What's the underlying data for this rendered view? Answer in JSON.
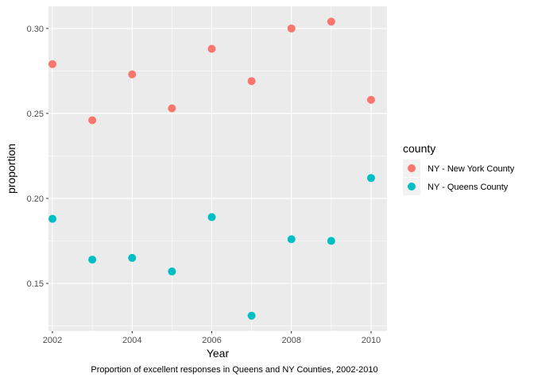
{
  "chart_data": {
    "type": "scatter",
    "title": "",
    "xlabel": "Year",
    "ylabel": "proportion",
    "caption": "Proportion of excellent responses in Queens and NY Counties, 2002-2010",
    "xlim": [
      2001.9,
      2010.4
    ],
    "ylim": [
      0.122,
      0.313
    ],
    "x_ticks": [
      2002,
      2004,
      2006,
      2008,
      2010
    ],
    "x_tick_labels": [
      "2002",
      "2004",
      "2006",
      "2008",
      "2010"
    ],
    "y_ticks": [
      0.15,
      0.2,
      0.25,
      0.3
    ],
    "y_tick_labels": [
      "0.15",
      "0.20",
      "0.25",
      "0.30"
    ],
    "grid": true,
    "legend": {
      "title": "county",
      "placement": "right"
    },
    "series": [
      {
        "name": "NY - New York County",
        "color": "#F8766D",
        "x": [
          2002,
          2003,
          2004,
          2005,
          2006,
          2007,
          2008,
          2009,
          2010
        ],
        "y": [
          0.279,
          0.246,
          0.273,
          0.253,
          0.288,
          0.269,
          0.3,
          0.304,
          0.258
        ]
      },
      {
        "name": "NY - Queens County",
        "color": "#00BFC4",
        "x": [
          2002,
          2003,
          2004,
          2005,
          2006,
          2007,
          2008,
          2009,
          2010
        ],
        "y": [
          0.188,
          0.164,
          0.165,
          0.157,
          0.189,
          0.131,
          0.176,
          0.175,
          0.212
        ]
      }
    ]
  }
}
